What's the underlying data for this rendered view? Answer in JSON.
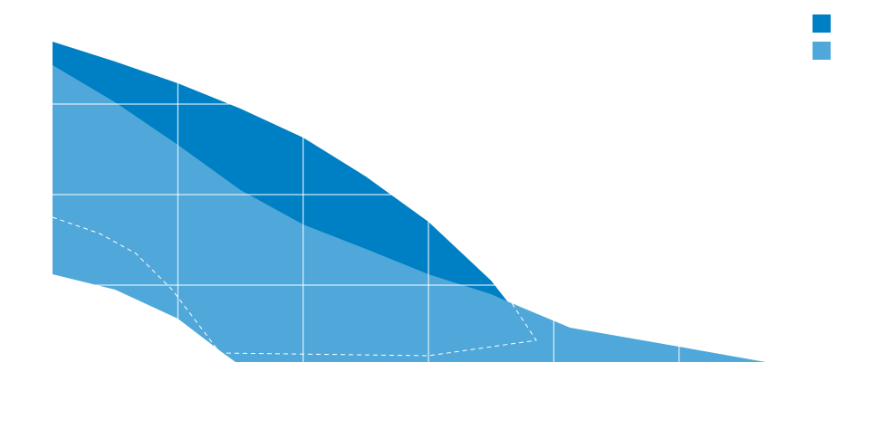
{
  "chart_data": {
    "type": "area",
    "xlim": [
      0,
      6
    ],
    "ylim": [
      0.15,
      4
    ],
    "xticks": [
      1,
      2,
      3,
      4,
      5
    ],
    "yticks": [
      1,
      2,
      3
    ],
    "grid": true,
    "grid_color": "#ffffff",
    "legend": "upper right",
    "series": [
      {
        "type": "area",
        "color": "#0080c4",
        "x": [
          0,
          0.5,
          1,
          1.5,
          2,
          2.5,
          3,
          3.5,
          3.63
        ],
        "values": [
          3.69,
          3.47,
          3.23,
          2.95,
          2.63,
          2.2,
          1.7,
          1.05,
          0.82
        ]
      },
      {
        "type": "area",
        "color": "#4fa8d9",
        "x": [
          0,
          0.5,
          1,
          1.5,
          2,
          2.5,
          3,
          3.5,
          3.63,
          4.13,
          5,
          5.69
        ],
        "values": [
          3.43,
          3.02,
          2.55,
          2.05,
          1.67,
          1.4,
          1.12,
          0.9,
          0.82,
          0.53,
          0.32,
          0.15
        ]
      },
      {
        "type": "area",
        "color": "#ffffff",
        "x": [
          0,
          0.5,
          1,
          1.36,
          1.46
        ],
        "values": [
          1.12,
          0.95,
          0.63,
          0.25,
          0.15
        ]
      },
      {
        "type": "line",
        "color": "#ffffff",
        "dashed": true,
        "x": [
          0,
          0.376,
          0.665,
          0.954,
          1.337,
          3.0,
          3.86,
          3.665
        ],
        "values": [
          1.75,
          1.57,
          1.35,
          0.95,
          0.25,
          0.22,
          0.39,
          0.8
        ]
      }
    ]
  }
}
